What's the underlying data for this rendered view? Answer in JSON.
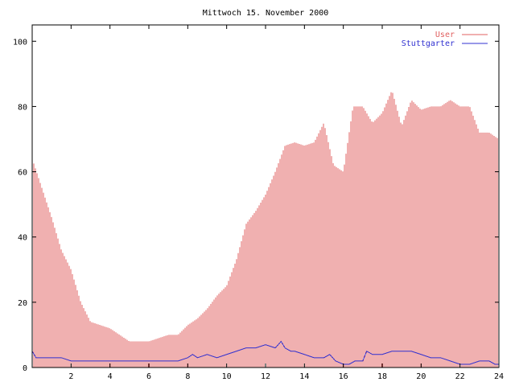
{
  "chart_data": {
    "type": "bar",
    "title": "Mittwoch 15. November 2000",
    "xlabel": "",
    "ylabel": "",
    "xlim": [
      0,
      24
    ],
    "ylim": [
      0,
      105
    ],
    "x_ticks": [
      "2",
      "4",
      "6",
      "8",
      "10",
      "12",
      "14",
      "16",
      "18",
      "20",
      "22",
      "24"
    ],
    "y_ticks": [
      "0",
      "20",
      "40",
      "60",
      "80",
      "100"
    ],
    "legend_position": "top-right",
    "grid": false,
    "series": [
      {
        "name": "User",
        "style": "impulses",
        "color": "#e06060",
        "x": [
          0,
          0.5,
          1,
          1.5,
          2,
          2.5,
          3,
          3.5,
          4,
          4.5,
          5,
          5.5,
          6,
          6.5,
          7,
          7.5,
          8,
          8.5,
          9,
          9.5,
          10,
          10.5,
          11,
          11.5,
          12,
          12.5,
          13,
          13.5,
          14,
          14.5,
          15,
          15.5,
          16,
          16.5,
          17,
          17.5,
          18,
          18.5,
          19,
          19.5,
          20,
          20.5,
          21,
          21.5,
          22,
          22.5,
          23,
          23.5,
          24
        ],
        "values": [
          64,
          55,
          46,
          36,
          30,
          20,
          14,
          13,
          12,
          10,
          8,
          8,
          8,
          9,
          10,
          10,
          13,
          15,
          18,
          22,
          25,
          33,
          44,
          48,
          53,
          60,
          68,
          69,
          68,
          69,
          75,
          62,
          60,
          80,
          80,
          75,
          78,
          85,
          74,
          82,
          79,
          80,
          80,
          82,
          80,
          80,
          72,
          72,
          70
        ]
      },
      {
        "name": "Stuttgarter",
        "style": "lines",
        "color": "#3030d0",
        "x": [
          0,
          0.2,
          0.5,
          1,
          1.5,
          2,
          2.5,
          3,
          3.5,
          4,
          4.5,
          5,
          5.5,
          6,
          6.5,
          7,
          7.5,
          8,
          8.25,
          8.5,
          9,
          9.5,
          10,
          10.5,
          11,
          11.5,
          12,
          12.5,
          12.8,
          13,
          13.3,
          13.5,
          14,
          14.5,
          15,
          15.3,
          15.6,
          16,
          16.3,
          16.6,
          17,
          17.2,
          17.5,
          18,
          18.5,
          19,
          19.5,
          20,
          20.5,
          21,
          21.5,
          22,
          22.5,
          23,
          23.5,
          23.8,
          24
        ],
        "values": [
          5,
          3,
          3,
          3,
          3,
          2,
          2,
          2,
          2,
          2,
          2,
          2,
          2,
          2,
          2,
          2,
          2,
          3,
          4,
          3,
          4,
          3,
          4,
          5,
          6,
          6,
          7,
          6,
          8,
          6,
          5,
          5,
          4,
          3,
          3,
          4,
          2,
          1,
          1,
          2,
          2,
          5,
          4,
          4,
          5,
          5,
          5,
          4,
          3,
          3,
          2,
          1,
          1,
          2,
          2,
          1,
          1
        ]
      }
    ]
  }
}
